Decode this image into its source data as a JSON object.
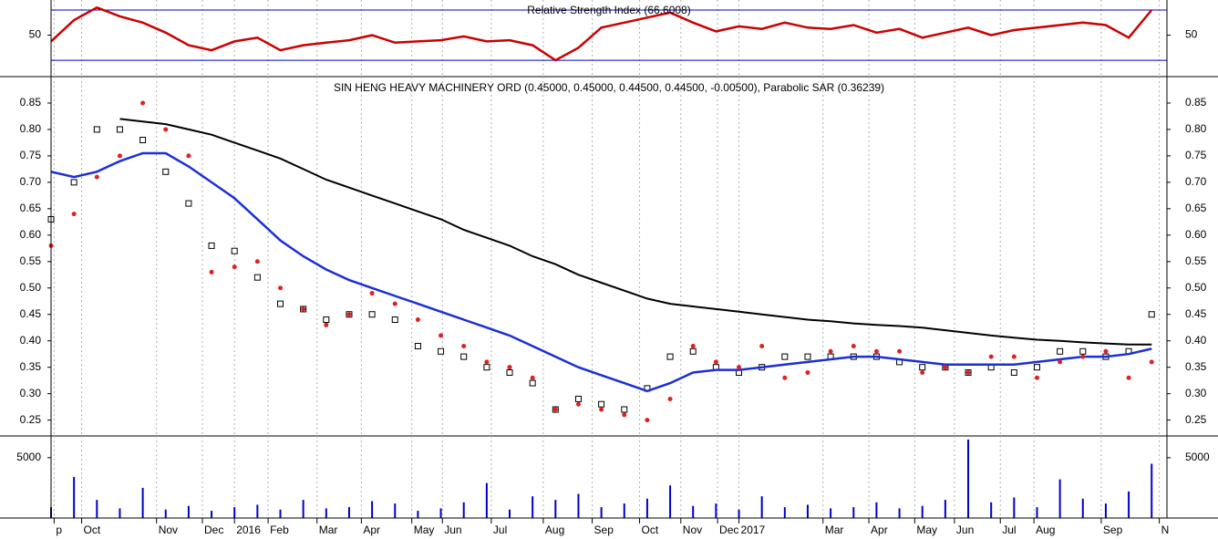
{
  "chart_data": [
    {
      "type": "line",
      "title": "Relative Strength Index (66.6008)",
      "x": [
        0,
        15,
        30,
        45,
        60,
        75,
        90,
        105,
        120,
        135,
        150,
        165,
        180,
        195,
        210,
        225,
        240,
        255,
        270,
        285,
        300,
        315,
        330,
        345,
        360,
        375,
        390,
        405,
        420,
        435,
        450,
        465,
        480,
        495,
        510,
        525,
        540,
        555,
        570,
        585,
        600,
        615,
        630,
        645,
        660,
        675,
        690,
        705,
        720
      ],
      "series": [
        {
          "color": "#cc0000",
          "values": [
            45,
            62,
            72,
            65,
            60,
            52,
            42,
            38,
            45,
            48,
            38,
            42,
            44,
            46,
            50,
            44,
            45,
            46,
            49,
            45,
            46,
            42,
            30,
            40,
            56,
            60,
            64,
            68,
            60,
            53,
            57,
            55,
            60,
            56,
            55,
            58,
            52,
            55,
            48,
            52,
            56,
            50,
            54,
            56,
            58,
            60,
            58,
            48,
            70
          ]
        }
      ],
      "xlim": [
        0,
        730
      ],
      "ylim": [
        17,
        78
      ],
      "yticks": [
        50
      ],
      "hlines": [
        30,
        70
      ],
      "hline_color": "#0000cc"
    },
    {
      "type": "line",
      "title": "SIN HENG HEAVY MACHINERY ORD (0.45000, 0.45000, 0.44500, 0.44500, -0.00500), Parabolic SAR (0.36239)",
      "x": [
        0,
        15,
        30,
        45,
        60,
        75,
        90,
        105,
        120,
        135,
        150,
        165,
        180,
        195,
        210,
        225,
        240,
        255,
        270,
        285,
        300,
        315,
        330,
        345,
        360,
        375,
        390,
        405,
        420,
        435,
        450,
        465,
        480,
        495,
        510,
        525,
        540,
        555,
        570,
        585,
        600,
        615,
        630,
        645,
        660,
        675,
        690,
        705,
        720
      ],
      "series": [
        {
          "style": "candle",
          "color": "#000000",
          "values": [
            0.63,
            0.7,
            0.8,
            0.8,
            0.78,
            0.72,
            0.66,
            0.58,
            0.57,
            0.52,
            0.47,
            0.46,
            0.44,
            0.45,
            0.45,
            0.44,
            0.39,
            0.38,
            0.37,
            0.35,
            0.34,
            0.32,
            0.27,
            0.29,
            0.28,
            0.27,
            0.31,
            0.37,
            0.38,
            0.35,
            0.34,
            0.35,
            0.37,
            0.37,
            0.37,
            0.37,
            0.37,
            0.36,
            0.35,
            0.35,
            0.34,
            0.35,
            0.34,
            0.35,
            0.38,
            0.38,
            0.37,
            0.38,
            0.45
          ]
        },
        {
          "style": "line",
          "color": "#000000",
          "values": [
            null,
            null,
            null,
            0.82,
            0.815,
            0.81,
            0.8,
            0.79,
            0.775,
            0.76,
            0.745,
            0.725,
            0.705,
            0.69,
            0.675,
            0.66,
            0.645,
            0.63,
            0.61,
            0.595,
            0.58,
            0.56,
            0.545,
            0.525,
            0.51,
            0.495,
            0.48,
            0.47,
            0.465,
            0.46,
            0.455,
            0.45,
            0.445,
            0.44,
            0.437,
            0.433,
            0.43,
            0.428,
            0.425,
            0.42,
            0.415,
            0.41,
            0.406,
            0.402,
            0.4,
            0.397,
            0.395,
            0.393,
            0.393
          ]
        },
        {
          "style": "line",
          "color": "#1a2fd6",
          "values": [
            0.72,
            0.71,
            0.72,
            0.74,
            0.755,
            0.755,
            0.73,
            0.7,
            0.67,
            0.63,
            0.59,
            0.56,
            0.535,
            0.515,
            0.5,
            0.485,
            0.47,
            0.455,
            0.44,
            0.425,
            0.41,
            0.39,
            0.37,
            0.35,
            0.335,
            0.32,
            0.305,
            0.32,
            0.34,
            0.345,
            0.345,
            0.35,
            0.355,
            0.36,
            0.365,
            0.37,
            0.37,
            0.365,
            0.36,
            0.355,
            0.355,
            0.355,
            0.355,
            0.36,
            0.365,
            0.37,
            0.37,
            0.375,
            0.385
          ]
        },
        {
          "style": "dots",
          "color": "#e02020",
          "values": [
            0.58,
            0.64,
            0.71,
            0.75,
            0.85,
            0.8,
            0.75,
            0.53,
            0.54,
            0.55,
            0.5,
            0.46,
            0.43,
            0.45,
            0.49,
            0.47,
            0.44,
            0.41,
            0.39,
            0.36,
            0.35,
            0.33,
            0.27,
            0.28,
            0.27,
            0.26,
            0.25,
            0.29,
            0.39,
            0.36,
            0.35,
            0.39,
            0.33,
            0.34,
            0.38,
            0.39,
            0.38,
            0.38,
            0.34,
            0.35,
            0.34,
            0.37,
            0.37,
            0.33,
            0.36,
            0.37,
            0.38,
            0.33,
            0.36
          ]
        }
      ],
      "xlim": [
        0,
        730
      ],
      "ylim": [
        0.22,
        0.9
      ],
      "yticks": [
        0.25,
        {
          "value": 0.3,
          "label": "0.30"
        },
        0.35,
        {
          "value": 0.4,
          "label": "0.40"
        },
        0.45,
        {
          "value": 0.5,
          "label": "0.50"
        },
        0.55,
        {
          "value": 0.6,
          "label": "0.60"
        },
        0.65,
        {
          "value": 0.7,
          "label": "0.70"
        },
        0.75,
        {
          "value": 0.8,
          "label": "0.80"
        },
        0.85
      ]
    },
    {
      "type": "bar",
      "color": "#0000cc",
      "x": [
        0,
        15,
        30,
        45,
        60,
        75,
        90,
        105,
        120,
        135,
        150,
        165,
        180,
        195,
        210,
        225,
        240,
        255,
        270,
        285,
        300,
        315,
        330,
        345,
        360,
        375,
        390,
        405,
        420,
        435,
        450,
        465,
        480,
        495,
        510,
        525,
        540,
        555,
        570,
        585,
        600,
        615,
        630,
        645,
        660,
        675,
        690,
        705,
        720
      ],
      "values": [
        900,
        3400,
        1500,
        800,
        2500,
        700,
        1000,
        600,
        900,
        1100,
        700,
        1500,
        800,
        900,
        1400,
        1200,
        600,
        800,
        1300,
        2900,
        700,
        1800,
        1500,
        2000,
        900,
        1200,
        1600,
        2700,
        1000,
        1200,
        700,
        1800,
        900,
        1100,
        800,
        900,
        1300,
        800,
        1000,
        1500,
        6500,
        1300,
        1700,
        900,
        3200,
        1600,
        1200,
        2200,
        4500
      ],
      "xlim": [
        0,
        730
      ],
      "ylim": [
        0,
        6800
      ],
      "yticks": [
        5000
      ],
      "xticks": [
        {
          "value": 2,
          "label": "p"
        },
        {
          "value": 20,
          "label": "Oct"
        },
        {
          "value": 69,
          "label": "Nov"
        },
        {
          "value": 99,
          "label": "Dec"
        },
        {
          "value": 120,
          "label": "2016"
        },
        {
          "value": 142,
          "label": "Feb"
        },
        {
          "value": 174,
          "label": "Mar"
        },
        {
          "value": 203,
          "label": "Apr"
        },
        {
          "value": 236,
          "label": "May"
        },
        {
          "value": 256,
          "label": "Jun"
        },
        {
          "value": 288,
          "label": "Jul"
        },
        {
          "value": 322,
          "label": "Aug"
        },
        {
          "value": 354,
          "label": "Sep"
        },
        {
          "value": 385,
          "label": "Oct"
        },
        {
          "value": 412,
          "label": "Nov"
        },
        {
          "value": 436,
          "label": "Dec"
        },
        {
          "value": 450,
          "label": "2017"
        },
        {
          "value": 505,
          "label": "Mar"
        },
        {
          "value": 535,
          "label": "Apr"
        },
        {
          "value": 565,
          "label": "May"
        },
        {
          "value": 591,
          "label": "Jun"
        },
        {
          "value": 621,
          "label": "Jul"
        },
        {
          "value": 643,
          "label": "Aug"
        },
        {
          "value": 687,
          "label": "Sep"
        },
        {
          "value": 725,
          "label": "N"
        }
      ]
    }
  ]
}
